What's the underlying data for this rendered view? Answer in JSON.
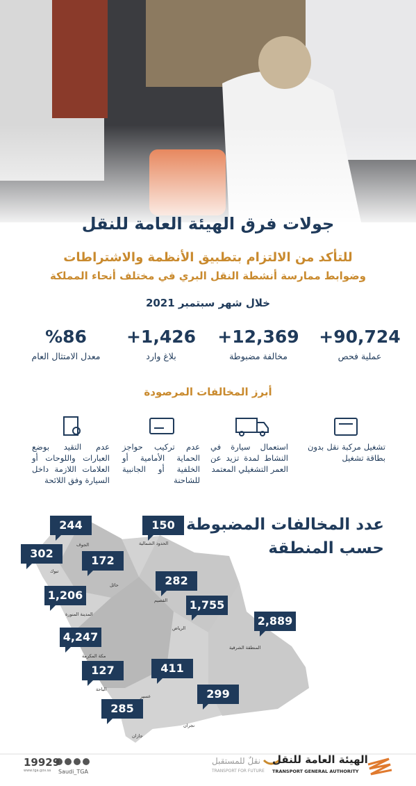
{
  "header": {
    "title": "جولات فرق الهيئة العامة للنقل",
    "subtitle_1": "للتأكد من الالتزام بتطبيق الأنظمة والاشتراطات",
    "subtitle_2": "وضوابط ممارسة أنشطة النقل البري في مختلف أنحاء المملكة",
    "period": "خلال شهر سبتمبر 2021"
  },
  "stats": [
    {
      "value": "+90,724",
      "label": "عملية فحص"
    },
    {
      "value": "+12,369",
      "label": "مخالفة مضبوطة"
    },
    {
      "value": "+1,426",
      "label": "بلاغ وارد"
    },
    {
      "value": "%86",
      "label": "معدل الامتثال العام"
    }
  ],
  "violations": {
    "title": "أبرز المخالفات المرصودة",
    "items": [
      "تشغيل مركبة نقل بدون بطاقة تشغيل",
      "استعمال سيارة في النشاط لمدة تزيد عن العمر التشغيلي المعتمد",
      "عدم تركيب حواجز الحماية الأمامية أو الخلفية أو الجانبية للشاحنة",
      "عدم التقيد بوضع العبارات واللوحات أو العلامات اللازمة داخل السيارة وفق اللائحة"
    ]
  },
  "map": {
    "title_1": "عدد المخالفات المضبوطة",
    "title_2": "حسب المنطقة",
    "regions": [
      {
        "name": "الجوف",
        "count": "244"
      },
      {
        "name": "الحدود الشمالية",
        "count": "150"
      },
      {
        "name": "تبوك",
        "count": "302"
      },
      {
        "name": "حائل",
        "count": "172"
      },
      {
        "name": "القصيم",
        "count": "282"
      },
      {
        "name": "المدينة المنورة",
        "count": "1,206"
      },
      {
        "name": "الرياض",
        "count": "1,755"
      },
      {
        "name": "المنطقة الشرقية",
        "count": "2,889"
      },
      {
        "name": "مكة المكرمة",
        "count": "4,247"
      },
      {
        "name": "الباحة",
        "count": "127"
      },
      {
        "name": "عسير",
        "count": "411"
      },
      {
        "name": "نجران",
        "count": "299"
      },
      {
        "name": "جازان",
        "count": "285"
      }
    ]
  },
  "footer": {
    "phone": "19929",
    "website": "www.tga.gov.sa",
    "handle": "Saudi_TGA",
    "slogan_ar": "نقلٌ للمستقبل",
    "slogan_en": "TRANSPORT FOR FUTURE",
    "authority_ar": "الهيئة العامة للنقل",
    "authority_en": "TRANSPORT GENERAL AUTHORITY"
  }
}
